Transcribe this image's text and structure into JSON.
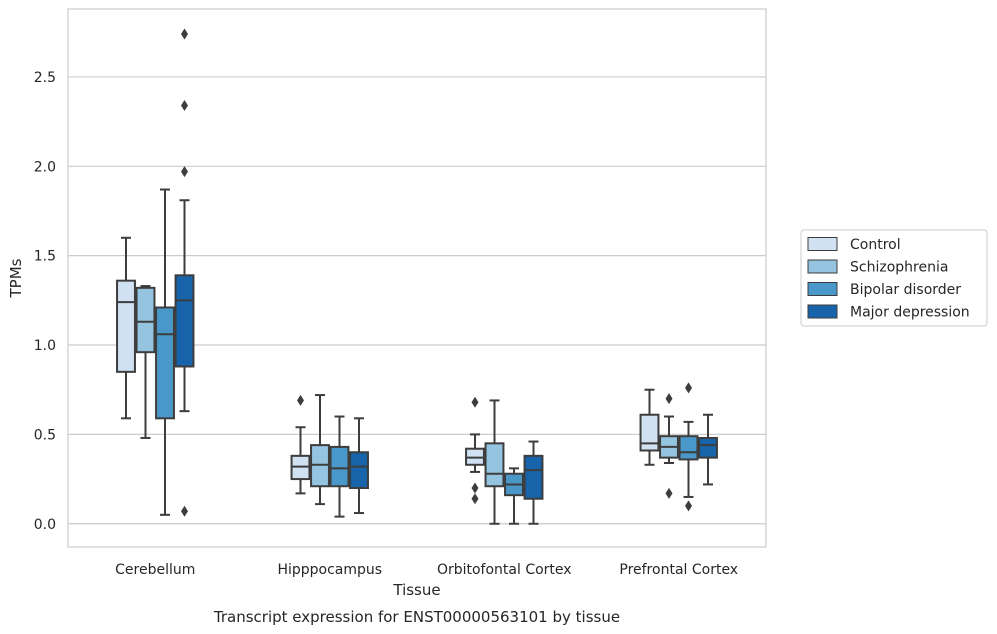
{
  "chart_data": {
    "type": "box",
    "caption": "Transcript expression for ENST00000563101 by tissue",
    "xlabel": "Tissue",
    "ylabel": "TPMs",
    "ylim": [
      -0.13,
      2.88
    ],
    "yticks": [
      0.0,
      0.5,
      1.0,
      1.5,
      2.0,
      2.5
    ],
    "ytick_labels": [
      "0.0",
      "0.5",
      "1.0",
      "1.5",
      "2.0",
      "2.5"
    ],
    "grid": "horizontal",
    "legend_position": "right",
    "categories": [
      "Cerebellum",
      "Hipppocampus",
      "Orbitofontal Cortex",
      "Prefrontal Cortex"
    ],
    "series": [
      {
        "name": "Control",
        "color": "#d0e1f2",
        "boxes": [
          {
            "whisker_low": 0.59,
            "q1": 0.85,
            "median": 1.24,
            "q3": 1.36,
            "whisker_high": 1.6,
            "outliers": []
          },
          {
            "whisker_low": 0.17,
            "q1": 0.25,
            "median": 0.32,
            "q3": 0.38,
            "whisker_high": 0.54,
            "outliers": [
              0.69
            ]
          },
          {
            "whisker_low": 0.29,
            "q1": 0.33,
            "median": 0.37,
            "q3": 0.42,
            "whisker_high": 0.5,
            "outliers": [
              0.68,
              0.2,
              0.14
            ]
          },
          {
            "whisker_low": 0.33,
            "q1": 0.41,
            "median": 0.45,
            "q3": 0.61,
            "whisker_high": 0.75,
            "outliers": []
          }
        ]
      },
      {
        "name": "Schizophrenia",
        "color": "#94c4df",
        "boxes": [
          {
            "whisker_low": 0.48,
            "q1": 0.96,
            "median": 1.13,
            "q3": 1.32,
            "whisker_high": 1.33,
            "outliers": []
          },
          {
            "whisker_low": 0.11,
            "q1": 0.21,
            "median": 0.33,
            "q3": 0.44,
            "whisker_high": 0.72,
            "outliers": []
          },
          {
            "whisker_low": 0.0,
            "q1": 0.21,
            "median": 0.28,
            "q3": 0.45,
            "whisker_high": 0.69,
            "outliers": []
          },
          {
            "whisker_low": 0.34,
            "q1": 0.37,
            "median": 0.43,
            "q3": 0.49,
            "whisker_high": 0.6,
            "outliers": [
              0.7,
              0.17
            ]
          }
        ]
      },
      {
        "name": "Bipolar disorder",
        "color": "#4a98c9",
        "boxes": [
          {
            "whisker_low": 0.05,
            "q1": 0.59,
            "median": 1.06,
            "q3": 1.21,
            "whisker_high": 1.87,
            "outliers": []
          },
          {
            "whisker_low": 0.04,
            "q1": 0.21,
            "median": 0.31,
            "q3": 0.43,
            "whisker_high": 0.6,
            "outliers": []
          },
          {
            "whisker_low": 0.0,
            "q1": 0.16,
            "median": 0.22,
            "q3": 0.28,
            "whisker_high": 0.31,
            "outliers": []
          },
          {
            "whisker_low": 0.15,
            "q1": 0.36,
            "median": 0.4,
            "q3": 0.49,
            "whisker_high": 0.57,
            "outliers": [
              0.76,
              0.1
            ]
          }
        ]
      },
      {
        "name": "Major depression",
        "color": "#1764ab",
        "boxes": [
          {
            "whisker_low": 0.63,
            "q1": 0.88,
            "median": 1.25,
            "q3": 1.39,
            "whisker_high": 1.81,
            "outliers": [
              2.74,
              2.34,
              1.97,
              0.07
            ]
          },
          {
            "whisker_low": 0.06,
            "q1": 0.2,
            "median": 0.32,
            "q3": 0.4,
            "whisker_high": 0.59,
            "outliers": []
          },
          {
            "whisker_low": 0.0,
            "q1": 0.14,
            "median": 0.3,
            "q3": 0.38,
            "whisker_high": 0.46,
            "outliers": []
          },
          {
            "whisker_low": 0.22,
            "q1": 0.37,
            "median": 0.44,
            "q3": 0.48,
            "whisker_high": 0.61,
            "outliers": []
          }
        ]
      }
    ]
  }
}
